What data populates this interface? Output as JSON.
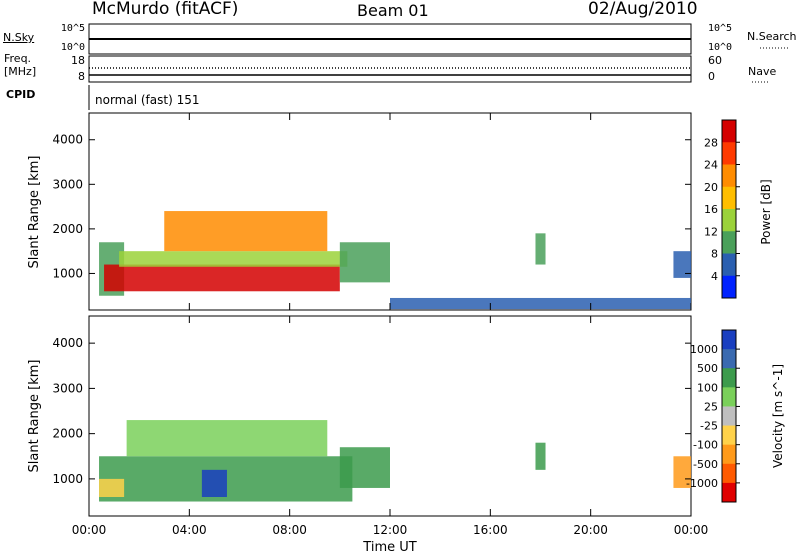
{
  "header": {
    "site": "McMurdo (fitACF)",
    "beam": "Beam 01",
    "date": "02/Aug/2010"
  },
  "top_panels": {
    "nsky_label": "N.Sky",
    "nsearch_label": "N.Search",
    "nsky_ticks": [
      "10^5",
      "10^0"
    ],
    "nsearch_ticks": [
      "10^5",
      "10^0"
    ],
    "freq_label": "Freq.",
    "freq_unit": "[MHz]",
    "freq_ticks": [
      "18",
      "8"
    ],
    "nave_label": "Nave",
    "nave_ticks": [
      "60",
      "0"
    ],
    "cpid_label": "CPID",
    "cpid_text": "normal (fast) 151"
  },
  "chart_data": [
    {
      "type": "heatmap",
      "title": "",
      "xlabel": "",
      "ylabel": "Slant Range [km]",
      "ylim": [
        180,
        4600
      ],
      "y_ticks": [
        "1000",
        "2000",
        "3000",
        "4000"
      ],
      "x_ticks": [
        "00:00",
        "04:00",
        "08:00",
        "12:00",
        "16:00",
        "20:00",
        "00:00"
      ],
      "colorbar": {
        "label": "Power [dB]",
        "ticks": [
          "28",
          "24",
          "20",
          "16",
          "12",
          "8",
          "4"
        ],
        "colors": [
          "#d40000",
          "#ff3a00",
          "#ff8c00",
          "#ffbe00",
          "#9bd23a",
          "#4aa05a",
          "#2a5fb0",
          "#0022ff"
        ]
      },
      "patches": [
        {
          "t0": 0.4,
          "t1": 1.4,
          "r0": 500,
          "r1": 1700,
          "color": "#4aa05a"
        },
        {
          "t0": 0.6,
          "t1": 10.0,
          "r0": 600,
          "r1": 1200,
          "color": "#d40000"
        },
        {
          "t0": 1.2,
          "t1": 10.3,
          "r0": 1150,
          "r1": 1500,
          "color": "#9bd23a"
        },
        {
          "t0": 3.0,
          "t1": 9.5,
          "r0": 1500,
          "r1": 2400,
          "color": "#ff8c00"
        },
        {
          "t0": 10.0,
          "t1": 12.0,
          "r0": 800,
          "r1": 1700,
          "color": "#4aa05a"
        },
        {
          "t0": 12.0,
          "t1": 24.0,
          "r0": 200,
          "r1": 450,
          "color": "#2a5fb0"
        },
        {
          "t0": 17.8,
          "t1": 18.2,
          "r0": 1200,
          "r1": 1900,
          "color": "#4aa05a"
        },
        {
          "t0": 23.3,
          "t1": 24.0,
          "r0": 900,
          "r1": 1500,
          "color": "#2a5fb0"
        }
      ]
    },
    {
      "type": "heatmap",
      "title": "",
      "xlabel": "Time UT",
      "ylabel": "Slant Range [km]",
      "ylim": [
        180,
        4600
      ],
      "y_ticks": [
        "1000",
        "2000",
        "3000",
        "4000"
      ],
      "x_ticks": [
        "00:00",
        "04:00",
        "08:00",
        "12:00",
        "16:00",
        "20:00",
        "00:00"
      ],
      "colorbar": {
        "label": "Velocity [m s^-1]",
        "ticks": [
          "1000",
          "500",
          "100",
          "25",
          "-25",
          "-100",
          "-500",
          "-1000"
        ],
        "colors": [
          "#1a3fc0",
          "#3a6ab0",
          "#3c9b4c",
          "#7ad05a",
          "#bfbfbf",
          "#ffd24a",
          "#ff9a1a",
          "#ff5a00",
          "#e00000"
        ]
      },
      "patches": [
        {
          "t0": 0.4,
          "t1": 10.5,
          "r0": 500,
          "r1": 1500,
          "color": "#3c9b4c"
        },
        {
          "t0": 0.4,
          "t1": 1.4,
          "r0": 600,
          "r1": 1000,
          "color": "#ffd24a"
        },
        {
          "t0": 4.5,
          "t1": 5.5,
          "r0": 600,
          "r1": 1200,
          "color": "#1a3fc0"
        },
        {
          "t0": 1.5,
          "t1": 9.5,
          "r0": 1500,
          "r1": 2300,
          "color": "#7ad05a"
        },
        {
          "t0": 10.0,
          "t1": 12.0,
          "r0": 800,
          "r1": 1700,
          "color": "#3c9b4c"
        },
        {
          "t0": 17.8,
          "t1": 18.2,
          "r0": 1200,
          "r1": 1800,
          "color": "#3c9b4c"
        },
        {
          "t0": 23.3,
          "t1": 24.0,
          "r0": 800,
          "r1": 1500,
          "color": "#ff9a1a"
        }
      ]
    }
  ]
}
